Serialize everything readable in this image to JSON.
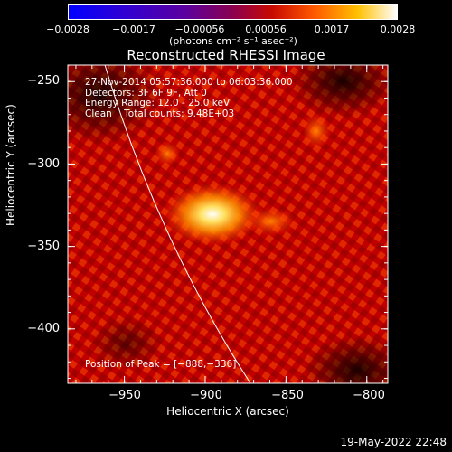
{
  "colorbar": {
    "ticks": [
      "−0.0028",
      "−0.0017",
      "−0.00056",
      "0.00056",
      "0.0017",
      "0.0028"
    ],
    "units": "(photons cm⁻² s⁻¹ asec⁻²)",
    "range": [
      -0.0028,
      0.0028
    ]
  },
  "chart_data": {
    "type": "heatmap",
    "title": "Reconstructed RHESSI Image",
    "xlabel": "Heliocentric X (arcsec)",
    "ylabel": "Heliocentric Y (arcsec)",
    "xlim": [
      -985,
      -787
    ],
    "ylim": [
      -433,
      -240
    ],
    "xticks": [
      -950,
      -900,
      -850,
      -800
    ],
    "yticks": [
      -250,
      -300,
      -350,
      -400
    ],
    "xtick_labels": [
      "−950",
      "−900",
      "−850",
      "−800"
    ],
    "ytick_labels": [
      "−250",
      "−300",
      "−350",
      "−400"
    ],
    "peak": [
      -888,
      -336
    ],
    "annotations": [
      "27-Nov-2014 05:57:36.000 to 06:03:36.000",
      "Detectors: 3F 6F 9F, Att 0",
      "Energy Range: 12.0 - 25.0 keV",
      "Clean    Total counts: 9.48E+03"
    ],
    "peak_label": "Position of Peak = [−888,−336]",
    "colormap": [
      "#0000ff",
      "#5a00b4",
      "#8c0060",
      "#c81e00",
      "#ff7800",
      "#ffc800",
      "#ffffff"
    ]
  },
  "footer": {
    "timestamp": "19-May-2022 22:48"
  }
}
